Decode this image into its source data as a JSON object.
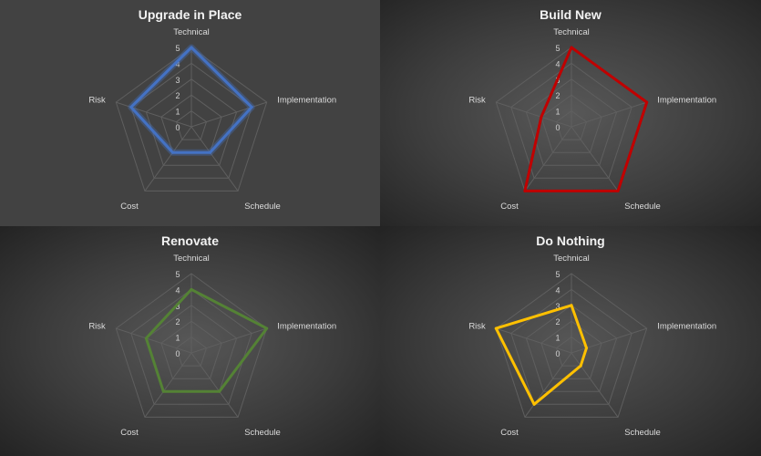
{
  "chart_data": [
    {
      "type": "radar",
      "title": "Upgrade in Place",
      "categories": [
        "Technical",
        "Implementation",
        "Schedule",
        "Cost",
        "Risk"
      ],
      "values": [
        5,
        4,
        2,
        2,
        4
      ],
      "rlim": [
        0,
        5
      ],
      "ticks": [
        "0",
        "1",
        "2",
        "3",
        "4",
        "5"
      ],
      "color": "#4472c4"
    },
    {
      "type": "radar",
      "title": "Build New",
      "categories": [
        "Technical",
        "Implementation",
        "Schedule",
        "Cost",
        "Risk"
      ],
      "values": [
        5,
        5,
        5,
        5,
        2
      ],
      "rlim": [
        0,
        5
      ],
      "ticks": [
        "0",
        "1",
        "2",
        "3",
        "4",
        "5"
      ],
      "color": "#c00000"
    },
    {
      "type": "radar",
      "title": "Renovate",
      "categories": [
        "Technical",
        "Implementation",
        "Schedule",
        "Cost",
        "Risk"
      ],
      "values": [
        4,
        5,
        3,
        3,
        3
      ],
      "rlim": [
        0,
        5
      ],
      "ticks": [
        "0",
        "1",
        "2",
        "3",
        "4",
        "5"
      ],
      "color": "#548235"
    },
    {
      "type": "radar",
      "title": "Do Nothing",
      "categories": [
        "Technical",
        "Implementation",
        "Schedule",
        "Cost",
        "Risk"
      ],
      "values": [
        3,
        1,
        1,
        4,
        5
      ],
      "rlim": [
        0,
        5
      ],
      "ticks": [
        "0",
        "1",
        "2",
        "3",
        "4",
        "5"
      ],
      "color": "#ffc000"
    }
  ]
}
